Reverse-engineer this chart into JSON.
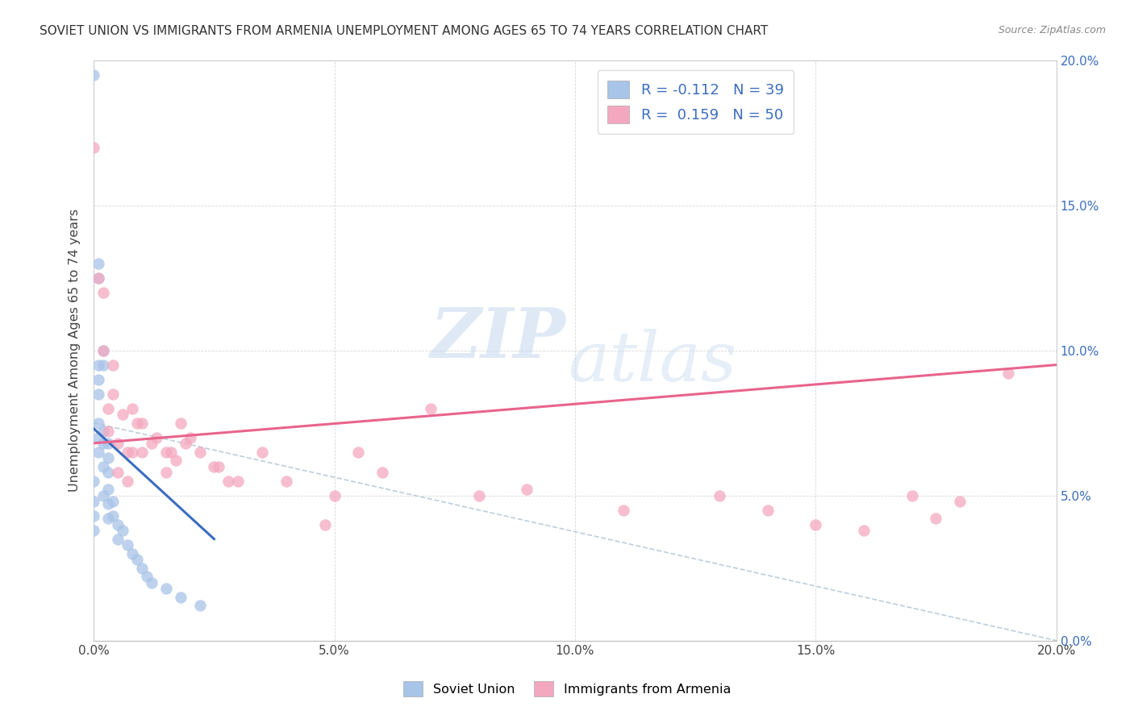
{
  "title": "SOVIET UNION VS IMMIGRANTS FROM ARMENIA UNEMPLOYMENT AMONG AGES 65 TO 74 YEARS CORRELATION CHART",
  "source": "Source: ZipAtlas.com",
  "ylabel": "Unemployment Among Ages 65 to 74 years",
  "xlim": [
    0.0,
    0.2
  ],
  "ylim": [
    0.0,
    0.2
  ],
  "soviet_color": "#a8c4e8",
  "armenia_color": "#f4a8c0",
  "soviet_line_color": "#3b6dbf",
  "armenia_line_color": "#e8648c",
  "dashed_line_color": "#b8c8d8",
  "watermark_zip": "ZIP",
  "watermark_atlas": "atlas",
  "soviet_R": -0.112,
  "soviet_N": 39,
  "armenia_R": 0.159,
  "armenia_N": 50,
  "soviet_x": [
    0.0,
    0.0,
    0.0,
    0.0,
    0.0,
    0.001,
    0.001,
    0.001,
    0.001,
    0.001,
    0.001,
    0.001,
    0.001,
    0.002,
    0.002,
    0.002,
    0.002,
    0.002,
    0.002,
    0.003,
    0.003,
    0.003,
    0.003,
    0.003,
    0.003,
    0.004,
    0.004,
    0.005,
    0.005,
    0.006,
    0.007,
    0.008,
    0.009,
    0.01,
    0.011,
    0.012,
    0.015,
    0.018,
    0.022
  ],
  "soviet_y": [
    0.195,
    0.055,
    0.048,
    0.043,
    0.038,
    0.13,
    0.125,
    0.095,
    0.09,
    0.085,
    0.075,
    0.07,
    0.065,
    0.1,
    0.095,
    0.072,
    0.068,
    0.06,
    0.05,
    0.068,
    0.063,
    0.058,
    0.052,
    0.047,
    0.042,
    0.048,
    0.043,
    0.04,
    0.035,
    0.038,
    0.033,
    0.03,
    0.028,
    0.025,
    0.022,
    0.02,
    0.018,
    0.015,
    0.012
  ],
  "armenia_x": [
    0.0,
    0.001,
    0.002,
    0.002,
    0.003,
    0.003,
    0.004,
    0.004,
    0.005,
    0.005,
    0.006,
    0.007,
    0.007,
    0.008,
    0.008,
    0.009,
    0.01,
    0.01,
    0.012,
    0.013,
    0.015,
    0.015,
    0.016,
    0.017,
    0.018,
    0.019,
    0.02,
    0.022,
    0.025,
    0.026,
    0.028,
    0.03,
    0.035,
    0.04,
    0.048,
    0.05,
    0.055,
    0.06,
    0.07,
    0.08,
    0.09,
    0.11,
    0.13,
    0.14,
    0.15,
    0.16,
    0.17,
    0.175,
    0.18,
    0.19
  ],
  "armenia_y": [
    0.17,
    0.125,
    0.12,
    0.1,
    0.08,
    0.072,
    0.095,
    0.085,
    0.068,
    0.058,
    0.078,
    0.065,
    0.055,
    0.08,
    0.065,
    0.075,
    0.075,
    0.065,
    0.068,
    0.07,
    0.065,
    0.058,
    0.065,
    0.062,
    0.075,
    0.068,
    0.07,
    0.065,
    0.06,
    0.06,
    0.055,
    0.055,
    0.065,
    0.055,
    0.04,
    0.05,
    0.065,
    0.058,
    0.08,
    0.05,
    0.052,
    0.045,
    0.05,
    0.045,
    0.04,
    0.038,
    0.05,
    0.042,
    0.048,
    0.092
  ],
  "soviet_line_x": [
    0.0,
    0.025
  ],
  "soviet_line_y": [
    0.073,
    0.035
  ],
  "armenia_line_x": [
    0.0,
    0.2
  ],
  "armenia_line_y": [
    0.068,
    0.095
  ]
}
